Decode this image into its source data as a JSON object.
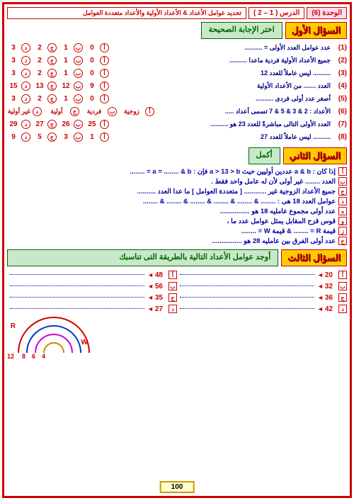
{
  "header": {
    "unit": "الوحدة (6)",
    "lesson": "الدرس ( 1 – 2 )",
    "topic": "تحديد عوامل الأعداد  &  الأعداد الأولية والأعداد متعددة العوامل"
  },
  "section1": {
    "label": "السؤال الأول",
    "title": "اختر الإجابة الصحيحة",
    "opt_letters": [
      "أ",
      "ب",
      "ج",
      "د"
    ],
    "questions": [
      {
        "n": "(1)",
        "t": "عدد عوامل العدد الأولى = ..........",
        "v": [
          "0",
          "1",
          "2",
          "3"
        ]
      },
      {
        "n": "(2)",
        "t": "جميع الأعداد الأولية فردية ماعدا ..........",
        "v": [
          "0",
          "1",
          "2",
          "3"
        ]
      },
      {
        "n": "(3)",
        "t": ".......... ليس عاملاً للعدد 12",
        "v": [
          "0",
          "1",
          "2",
          "3"
        ]
      },
      {
        "n": "(4)",
        "t": "العدد ....... من الأعداد الأولية",
        "v": [
          "9",
          "12",
          "13",
          "15"
        ]
      },
      {
        "n": "(5)",
        "t": "أصغر عدد أولى فردى ..........",
        "v": [
          "0",
          "1",
          "2",
          "3"
        ]
      },
      {
        "n": "(6)",
        "t": "الأعداد : 2 & 3 & 5 & 7 تسمى أعداد .....",
        "v": [
          "زوجية",
          "فردية",
          "أولية",
          "غير أولية"
        ],
        "wide": true
      },
      {
        "n": "(7)",
        "t": "العدد الأولى التالى مباشرةً للعدد 23 هو ..........",
        "v": [
          "25",
          "26",
          "27",
          "29"
        ]
      },
      {
        "n": "(8)",
        "t": ".......... ليس عاملاً للعدد 27",
        "v": [
          "1",
          "3",
          "5",
          "9"
        ]
      }
    ]
  },
  "section2": {
    "label": "السؤال الثاني",
    "title": "أكمل",
    "markers": [
      "أ",
      "ب",
      "ج",
      "د",
      "ه",
      "و",
      "ز",
      "ح"
    ],
    "lines": [
      "إذا كان : a & b عددين أوليين حيث a  >  13  >  b  فإن : a = ........  &  b = ........",
      "العدد ........ غير أولى لأن له عامل واحد فقط .",
      "جميع الأعداد الزوجية غير ............ [ متعددة العوامل ] ما عدا  العدد  ..........",
      "عوامل العدد 18 هى : ........  &  ........  &  ........  &  ........  &  ........  &  ........",
      "عدد أولى مجموع عامليه  18 هو ................",
      "قوس قزح المقابل يمثل عوامل عدد ما ،",
      "قيمة  R  = ........  &  قيمة  W  = ........",
      "عدد أولى الفرق بين عامليه  28  هو ................"
    ],
    "rainbow": {
      "labels_top": {
        "left": "R",
        "right": "W"
      },
      "labels_bottom": [
        "12",
        "8",
        "6",
        "4"
      ],
      "arc_colors": [
        "#cc0000",
        "#0033cc",
        "#cc00cc",
        "#cc8800"
      ]
    }
  },
  "section3": {
    "label": "السؤال الثالث",
    "title": "أوجد عوامل الأعداد التالية بالطريقة التى تناسبك",
    "markers": [
      "أ",
      "ب",
      "ج",
      "د"
    ],
    "left": [
      "20",
      "32",
      "36",
      "42"
    ],
    "right": [
      "48",
      "56",
      "35",
      "27"
    ]
  },
  "page_number": "100"
}
